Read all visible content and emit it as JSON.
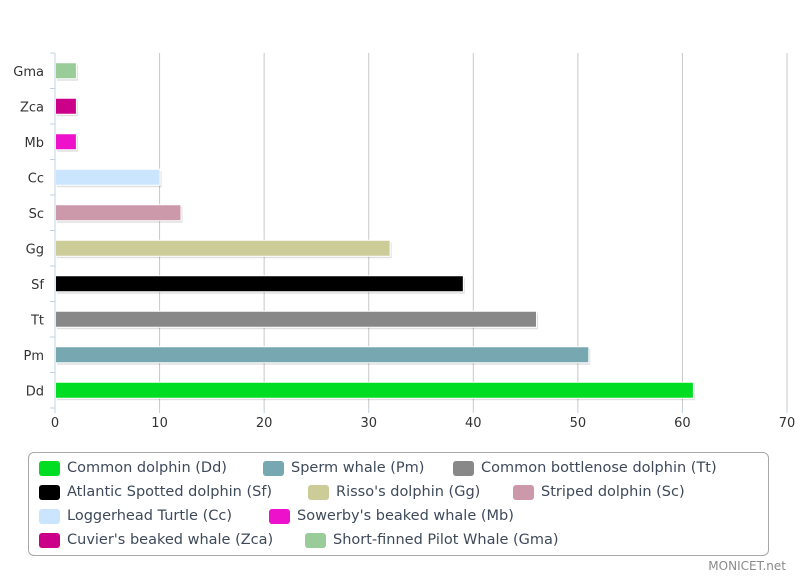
{
  "chart_data": {
    "type": "bar",
    "orientation": "horizontal",
    "title": "",
    "xlabel": "",
    "ylabel": "",
    "xlim": [
      0,
      70
    ],
    "ticks": [
      "0",
      "10",
      "20",
      "30",
      "40",
      "50",
      "60",
      "70"
    ],
    "grid": true,
    "categories": [
      "Gma",
      "Zca",
      "Mb",
      "Cc",
      "Sc",
      "Gg",
      "Sf",
      "Tt",
      "Pm",
      "Dd"
    ],
    "values": [
      2,
      2,
      2,
      10,
      12,
      32,
      39,
      46,
      51,
      61
    ],
    "colors": [
      "#99cc99",
      "#cc0088",
      "#ee11cc",
      "#cce5ff",
      "#cc99aa",
      "#cccc99",
      "#000000",
      "#888888",
      "#77a7b0",
      "#00dd22"
    ]
  },
  "legend": {
    "items": [
      {
        "label": "Common dolphin (Dd)",
        "color": "#00dd22"
      },
      {
        "label": "Sperm whale (Pm)",
        "color": "#77a7b0"
      },
      {
        "label": "Common bottlenose dolphin (Tt)",
        "color": "#888888"
      },
      {
        "label": "Atlantic Spotted dolphin (Sf)",
        "color": "#000000"
      },
      {
        "label": "Risso's dolphin (Gg)",
        "color": "#cccc99"
      },
      {
        "label": "Striped dolphin (Sc)",
        "color": "#cc99aa"
      },
      {
        "label": "Loggerhead Turtle (Cc)",
        "color": "#cce5ff"
      },
      {
        "label": "Sowerby's beaked whale (Mb)",
        "color": "#ee11cc"
      },
      {
        "label": "Cuvier's beaked whale (Zca)",
        "color": "#cc0088"
      },
      {
        "label": "Short-finned Pilot Whale (Gma)",
        "color": "#99cc99"
      }
    ]
  },
  "credit": "MONICET.net"
}
